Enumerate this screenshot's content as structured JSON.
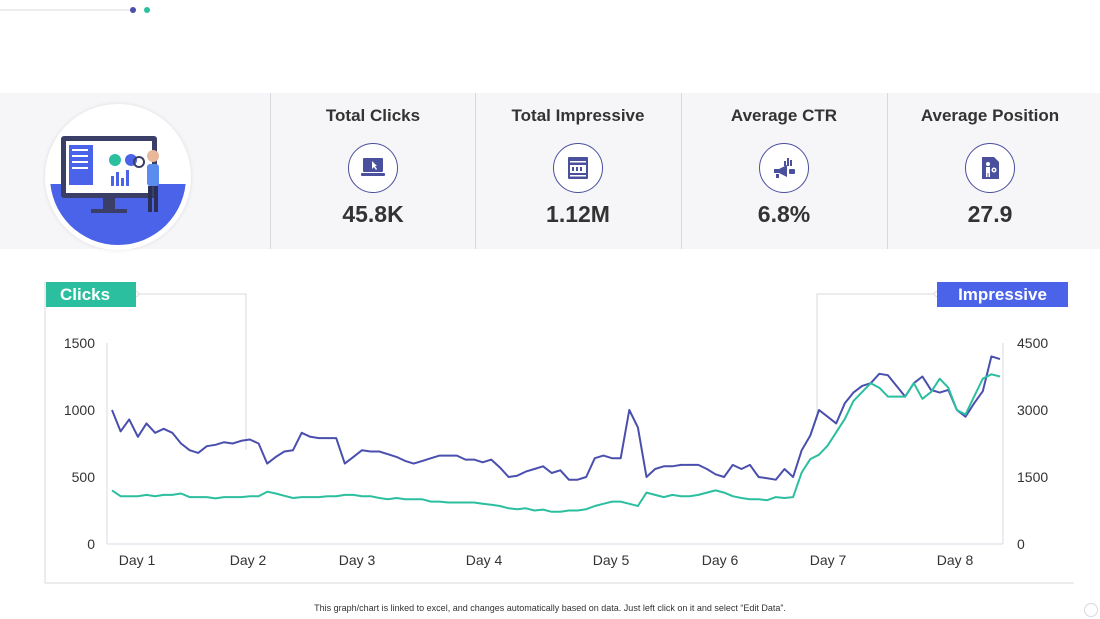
{
  "kpis": [
    {
      "title": "Total Clicks",
      "value": "45.8K",
      "icon": "laptop-click-icon"
    },
    {
      "title": "Total Impressive",
      "value": "1.12M",
      "icon": "web-page-icon"
    },
    {
      "title": "Average CTR",
      "value": "6.8%",
      "icon": "megaphone-chart-icon"
    },
    {
      "title": "Average Position",
      "value": "27.9",
      "icon": "person-location-icon"
    }
  ],
  "labels": {
    "clicks": "Clicks",
    "impressive": "Impressive"
  },
  "footnote": "This graph/chart is linked to excel, and changes automatically based on data. Just left click on it and select “Edit Data”.",
  "colors": {
    "clicks": "#2bbf9f",
    "impressive": "#4a4fae",
    "impressive_label": "#4a63e8",
    "icon": "#4a4f9e"
  },
  "chart_data": {
    "type": "line",
    "x_tick_labels": [
      "Day 1",
      "Day 2",
      "Day 3",
      "Day 4",
      "Day 5",
      "Day 6",
      "Day 7",
      "Day 8"
    ],
    "y_left": {
      "ticks": [
        "0",
        "500",
        "1000",
        "1500"
      ],
      "ylim": [
        0,
        1500
      ]
    },
    "y_right": {
      "ticks": [
        "0",
        "1500",
        "3000",
        "4500"
      ],
      "ylim": [
        0,
        4500
      ]
    },
    "grid": false,
    "series": [
      {
        "name": "Clicks",
        "axis": "left",
        "values": [
          1000,
          840,
          930,
          800,
          900,
          830,
          860,
          830,
          750,
          700,
          680,
          730,
          740,
          760,
          750,
          770,
          780,
          750,
          600,
          650,
          690,
          700,
          830,
          800,
          790,
          790,
          790,
          600,
          650,
          700,
          690,
          690,
          670,
          650,
          620,
          600,
          620,
          640,
          660,
          660,
          660,
          630,
          630,
          610,
          630,
          570,
          500,
          510,
          540,
          560,
          580,
          530,
          550,
          480,
          480,
          500,
          640,
          660,
          640,
          640,
          1000,
          870,
          500,
          560,
          580,
          580,
          590,
          590,
          590,
          560,
          520,
          500,
          590,
          560,
          590,
          500,
          490,
          480,
          560,
          500,
          700,
          810,
          1000,
          950,
          900,
          1050,
          1130,
          1180,
          1200,
          1270,
          1260,
          1180,
          1100,
          1200,
          1250,
          1150,
          1130,
          1150,
          1000,
          950,
          1050,
          1140,
          1400,
          1380
        ]
      },
      {
        "name": "Impressive",
        "axis": "right",
        "values": [
          1200,
          1070,
          1070,
          1070,
          1100,
          1070,
          1100,
          1100,
          1130,
          1050,
          1050,
          1050,
          1020,
          1050,
          1050,
          1050,
          1070,
          1070,
          1170,
          1130,
          1080,
          1030,
          1050,
          1050,
          1050,
          1070,
          1070,
          1100,
          1100,
          1070,
          1070,
          1030,
          1000,
          1030,
          1000,
          1000,
          1000,
          950,
          950,
          930,
          930,
          930,
          930,
          900,
          880,
          850,
          800,
          780,
          800,
          750,
          770,
          720,
          720,
          750,
          750,
          780,
          850,
          900,
          950,
          950,
          900,
          850,
          1150,
          1100,
          1050,
          1100,
          1070,
          1070,
          1100,
          1150,
          1200,
          1150,
          1070,
          1030,
          1000,
          1000,
          980,
          1050,
          1030,
          1050,
          1600,
          1900,
          2000,
          2200,
          2500,
          2800,
          3200,
          3400,
          3600,
          3500,
          3300,
          3300,
          3300,
          3600,
          3250,
          3400,
          3700,
          3500,
          3000,
          2900,
          3300,
          3700,
          3800,
          3750
        ]
      }
    ]
  }
}
